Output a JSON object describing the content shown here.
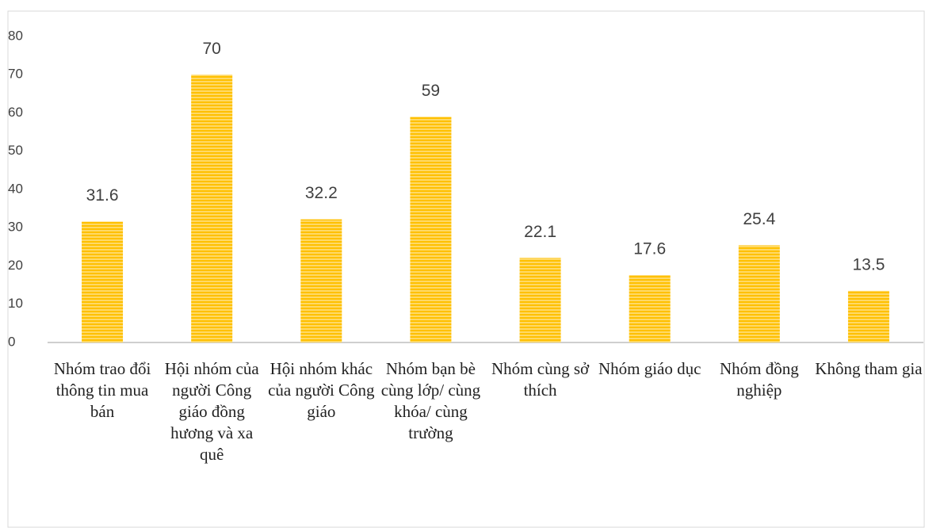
{
  "chart_data": {
    "type": "bar",
    "categories": [
      "Nhóm trao đổi thông tin mua bán",
      "Hội nhóm của người Công giáo đồng hương và xa quê",
      "Hội nhóm khác của người Công giáo",
      "Nhóm bạn bè cùng lớp/ cùng khóa/ cùng trường",
      "Nhóm cùng sở thích",
      "Nhóm giáo dục",
      "Nhóm đồng nghiệp",
      "Không tham gia"
    ],
    "values": [
      31.6,
      70,
      32.2,
      59,
      22.1,
      17.6,
      25.4,
      13.5
    ],
    "color": "#ffc000",
    "ylim": [
      0,
      80
    ],
    "yticks": [
      0,
      10,
      20,
      30,
      40,
      50,
      60,
      70,
      80
    ],
    "grid": false
  }
}
